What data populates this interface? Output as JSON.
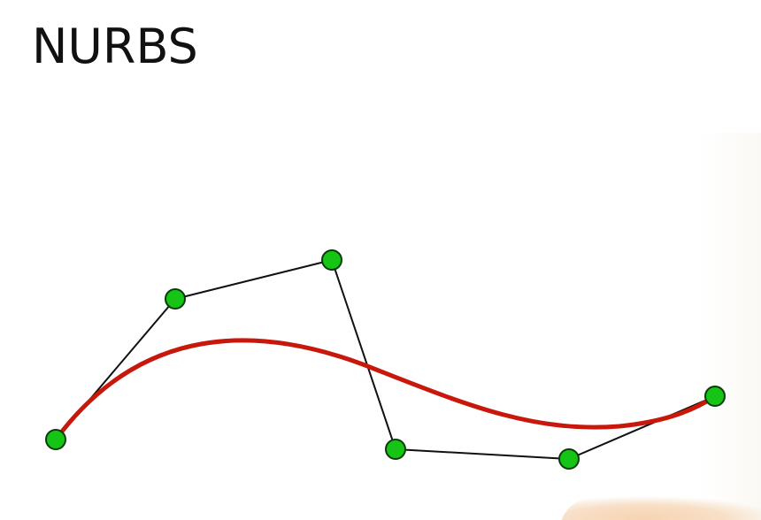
{
  "title": "NURBS",
  "colors": {
    "curve": "#c8180c",
    "polygon": "#111111",
    "control_point_fill": "#16c416",
    "control_point_stroke": "#0a3a0a"
  },
  "control_points": [
    {
      "id": "p0"
    },
    {
      "id": "p1"
    },
    {
      "id": "p2"
    },
    {
      "id": "p3"
    },
    {
      "id": "p4"
    },
    {
      "id": "p5"
    }
  ]
}
